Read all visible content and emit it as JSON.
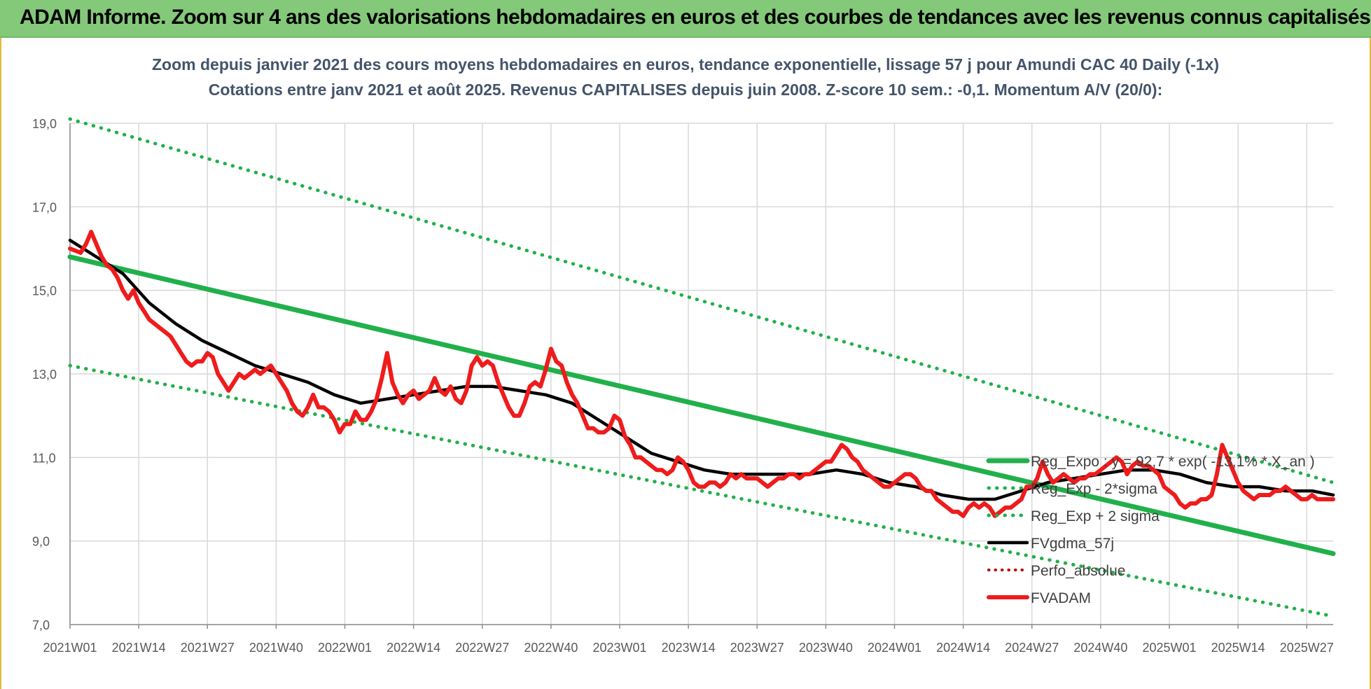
{
  "banner": {
    "title": "ADAM Informe. Zoom sur 4 ans des valorisations hebdomadaires en euros et des courbes de tendances avec les revenus connus capitalisés"
  },
  "colors": {
    "banner_bg": "#84c97a",
    "regression": "#21b04b",
    "sigma": "#21b04b",
    "smoothed": "#000000",
    "perfo": "#c00000",
    "price": "#ee1c1c",
    "grid": "#d9d9d9"
  },
  "chart_data": {
    "type": "line",
    "title": "Zoom depuis janvier 2021 des cours moyens hebdomadaires en euros, tendance exponentielle, lissage 57 j pour Amundi CAC 40 Daily (-1x)",
    "subtitle": "Cotations entre janv 2021 et août 2025. Revenus CAPITALISES depuis juin 2008. Z-score 10 sem.: -0,1. Momentum A/V (20/0):",
    "xlabel": "",
    "ylabel": "",
    "ylim": [
      7.0,
      19.0
    ],
    "y_ticks": [
      "19,0",
      "17,0",
      "15,0",
      "13,0",
      "11,0",
      "9,0",
      "7,0"
    ],
    "y_tick_values": [
      19,
      17,
      15,
      13,
      11,
      9,
      7
    ],
    "x_ticks": [
      "2021W01",
      "2021W14",
      "2021W27",
      "2021W40",
      "2022W01",
      "2022W14",
      "2022W27",
      "2022W40",
      "2023W01",
      "2023W14",
      "2023W27",
      "2023W40",
      "2024W01",
      "2024W14",
      "2024W27",
      "2024W40",
      "2025W01",
      "2025W14",
      "2025W27"
    ],
    "x_tick_index": [
      0,
      13,
      26,
      39,
      52,
      65,
      78,
      91,
      104,
      117,
      130,
      143,
      156,
      169,
      182,
      195,
      208,
      221,
      234
    ],
    "n_weeks": 240,
    "grid": true,
    "legend_position": "right",
    "series": [
      {
        "name": "Reg_Expo : y = 92,7 * exp( -13,1% * X_an )",
        "style": "solid",
        "line": [
          [
            0,
            15.8
          ],
          [
            239,
            8.7
          ]
        ]
      },
      {
        "name": "Reg_Exp - 2*sigma",
        "style": "dotted",
        "line": [
          [
            0,
            13.2
          ],
          [
            239,
            7.2
          ]
        ]
      },
      {
        "name": "Reg_Exp + 2 sigma",
        "style": "dotted",
        "line": [
          [
            0,
            19.1
          ],
          [
            239,
            10.4
          ]
        ]
      },
      {
        "name": "FVgdma_57j",
        "style": "solid",
        "points": [
          [
            0,
            16.2
          ],
          [
            5,
            15.8
          ],
          [
            10,
            15.4
          ],
          [
            15,
            14.7
          ],
          [
            20,
            14.2
          ],
          [
            25,
            13.8
          ],
          [
            30,
            13.5
          ],
          [
            35,
            13.2
          ],
          [
            40,
            13.0
          ],
          [
            45,
            12.8
          ],
          [
            50,
            12.5
          ],
          [
            55,
            12.3
          ],
          [
            60,
            12.4
          ],
          [
            65,
            12.5
          ],
          [
            70,
            12.6
          ],
          [
            75,
            12.7
          ],
          [
            80,
            12.7
          ],
          [
            85,
            12.6
          ],
          [
            90,
            12.5
          ],
          [
            95,
            12.3
          ],
          [
            100,
            11.9
          ],
          [
            105,
            11.5
          ],
          [
            110,
            11.1
          ],
          [
            115,
            10.9
          ],
          [
            120,
            10.7
          ],
          [
            125,
            10.6
          ],
          [
            130,
            10.6
          ],
          [
            135,
            10.6
          ],
          [
            140,
            10.6
          ],
          [
            145,
            10.7
          ],
          [
            150,
            10.6
          ],
          [
            155,
            10.4
          ],
          [
            160,
            10.3
          ],
          [
            165,
            10.1
          ],
          [
            170,
            10.0
          ],
          [
            175,
            10.0
          ],
          [
            180,
            10.2
          ],
          [
            185,
            10.4
          ],
          [
            190,
            10.5
          ],
          [
            195,
            10.6
          ],
          [
            200,
            10.7
          ],
          [
            205,
            10.7
          ],
          [
            210,
            10.6
          ],
          [
            215,
            10.4
          ],
          [
            220,
            10.3
          ],
          [
            225,
            10.3
          ],
          [
            230,
            10.2
          ],
          [
            235,
            10.2
          ],
          [
            239,
            10.1
          ]
        ]
      },
      {
        "name": "Perfo_absolue",
        "style": "dotted",
        "points": []
      },
      {
        "name": "FVADAM",
        "style": "solid",
        "points": [
          [
            0,
            16.0
          ],
          [
            2,
            15.9
          ],
          [
            3,
            16.1
          ],
          [
            4,
            16.4
          ],
          [
            5,
            16.1
          ],
          [
            6,
            15.8
          ],
          [
            7,
            15.6
          ],
          [
            8,
            15.5
          ],
          [
            9,
            15.3
          ],
          [
            10,
            15.0
          ],
          [
            11,
            14.8
          ],
          [
            12,
            15.0
          ],
          [
            13,
            14.7
          ],
          [
            14,
            14.5
          ],
          [
            15,
            14.3
          ],
          [
            16,
            14.2
          ],
          [
            17,
            14.1
          ],
          [
            18,
            14.0
          ],
          [
            19,
            13.9
          ],
          [
            20,
            13.7
          ],
          [
            21,
            13.5
          ],
          [
            22,
            13.3
          ],
          [
            23,
            13.2
          ],
          [
            24,
            13.3
          ],
          [
            25,
            13.3
          ],
          [
            26,
            13.5
          ],
          [
            27,
            13.4
          ],
          [
            28,
            13.0
          ],
          [
            29,
            12.8
          ],
          [
            30,
            12.6
          ],
          [
            31,
            12.8
          ],
          [
            32,
            13.0
          ],
          [
            33,
            12.9
          ],
          [
            34,
            13.0
          ],
          [
            35,
            13.1
          ],
          [
            36,
            13.0
          ],
          [
            37,
            13.1
          ],
          [
            38,
            13.2
          ],
          [
            39,
            13.0
          ],
          [
            40,
            12.8
          ],
          [
            41,
            12.6
          ],
          [
            42,
            12.3
          ],
          [
            43,
            12.1
          ],
          [
            44,
            12.0
          ],
          [
            45,
            12.2
          ],
          [
            46,
            12.5
          ],
          [
            47,
            12.2
          ],
          [
            48,
            12.2
          ],
          [
            49,
            12.1
          ],
          [
            50,
            11.9
          ],
          [
            51,
            11.6
          ],
          [
            52,
            11.8
          ],
          [
            53,
            11.8
          ],
          [
            54,
            12.1
          ],
          [
            55,
            11.9
          ],
          [
            56,
            11.9
          ],
          [
            57,
            12.1
          ],
          [
            58,
            12.4
          ],
          [
            59,
            12.9
          ],
          [
            60,
            13.5
          ],
          [
            61,
            12.8
          ],
          [
            62,
            12.5
          ],
          [
            63,
            12.3
          ],
          [
            64,
            12.5
          ],
          [
            65,
            12.6
          ],
          [
            66,
            12.4
          ],
          [
            67,
            12.5
          ],
          [
            68,
            12.6
          ],
          [
            69,
            12.9
          ],
          [
            70,
            12.6
          ],
          [
            71,
            12.5
          ],
          [
            72,
            12.7
          ],
          [
            73,
            12.4
          ],
          [
            74,
            12.3
          ],
          [
            75,
            12.6
          ],
          [
            76,
            13.2
          ],
          [
            77,
            13.4
          ],
          [
            78,
            13.2
          ],
          [
            79,
            13.3
          ],
          [
            80,
            13.2
          ],
          [
            81,
            12.8
          ],
          [
            82,
            12.5
          ],
          [
            83,
            12.2
          ],
          [
            84,
            12.0
          ],
          [
            85,
            12.0
          ],
          [
            86,
            12.3
          ],
          [
            87,
            12.7
          ],
          [
            88,
            12.8
          ],
          [
            89,
            12.7
          ],
          [
            90,
            13.1
          ],
          [
            91,
            13.6
          ],
          [
            92,
            13.3
          ],
          [
            93,
            13.2
          ],
          [
            94,
            12.8
          ],
          [
            95,
            12.5
          ],
          [
            96,
            12.3
          ],
          [
            97,
            12.0
          ],
          [
            98,
            11.7
          ],
          [
            99,
            11.7
          ],
          [
            100,
            11.6
          ],
          [
            101,
            11.6
          ],
          [
            102,
            11.7
          ],
          [
            103,
            12.0
          ],
          [
            104,
            11.9
          ],
          [
            105,
            11.5
          ],
          [
            106,
            11.3
          ],
          [
            107,
            11.0
          ],
          [
            108,
            11.0
          ],
          [
            109,
            10.9
          ],
          [
            110,
            10.8
          ],
          [
            111,
            10.7
          ],
          [
            112,
            10.7
          ],
          [
            113,
            10.6
          ],
          [
            114,
            10.7
          ],
          [
            115,
            11.0
          ],
          [
            116,
            10.9
          ],
          [
            117,
            10.7
          ],
          [
            118,
            10.4
          ],
          [
            119,
            10.3
          ],
          [
            120,
            10.3
          ],
          [
            121,
            10.4
          ],
          [
            122,
            10.4
          ],
          [
            123,
            10.3
          ],
          [
            124,
            10.4
          ],
          [
            125,
            10.6
          ],
          [
            126,
            10.5
          ],
          [
            127,
            10.6
          ],
          [
            128,
            10.5
          ],
          [
            129,
            10.5
          ],
          [
            130,
            10.5
          ],
          [
            131,
            10.4
          ],
          [
            132,
            10.3
          ],
          [
            133,
            10.4
          ],
          [
            134,
            10.5
          ],
          [
            135,
            10.5
          ],
          [
            136,
            10.6
          ],
          [
            137,
            10.6
          ],
          [
            138,
            10.5
          ],
          [
            139,
            10.6
          ],
          [
            140,
            10.6
          ],
          [
            141,
            10.7
          ],
          [
            142,
            10.8
          ],
          [
            143,
            10.9
          ],
          [
            144,
            10.9
          ],
          [
            145,
            11.1
          ],
          [
            146,
            11.3
          ],
          [
            147,
            11.2
          ],
          [
            148,
            11.0
          ],
          [
            149,
            10.9
          ],
          [
            150,
            10.7
          ],
          [
            151,
            10.6
          ],
          [
            152,
            10.5
          ],
          [
            153,
            10.4
          ],
          [
            154,
            10.3
          ],
          [
            155,
            10.3
          ],
          [
            156,
            10.4
          ],
          [
            157,
            10.5
          ],
          [
            158,
            10.6
          ],
          [
            159,
            10.6
          ],
          [
            160,
            10.5
          ],
          [
            161,
            10.3
          ],
          [
            162,
            10.2
          ],
          [
            163,
            10.2
          ],
          [
            164,
            10.0
          ],
          [
            165,
            9.9
          ],
          [
            166,
            9.8
          ],
          [
            167,
            9.7
          ],
          [
            168,
            9.7
          ],
          [
            169,
            9.6
          ],
          [
            170,
            9.8
          ],
          [
            171,
            9.9
          ],
          [
            172,
            9.8
          ],
          [
            173,
            9.9
          ],
          [
            174,
            9.8
          ],
          [
            175,
            9.6
          ],
          [
            176,
            9.7
          ],
          [
            177,
            9.8
          ],
          [
            178,
            9.8
          ],
          [
            179,
            9.9
          ],
          [
            180,
            10.0
          ],
          [
            181,
            10.3
          ],
          [
            182,
            10.3
          ],
          [
            183,
            10.5
          ],
          [
            184,
            10.9
          ],
          [
            185,
            10.6
          ],
          [
            186,
            10.4
          ],
          [
            187,
            10.5
          ],
          [
            188,
            10.6
          ],
          [
            189,
            10.5
          ],
          [
            190,
            10.4
          ],
          [
            191,
            10.5
          ],
          [
            192,
            10.5
          ],
          [
            193,
            10.6
          ],
          [
            194,
            10.6
          ],
          [
            195,
            10.7
          ],
          [
            196,
            10.8
          ],
          [
            197,
            10.9
          ],
          [
            198,
            11.0
          ],
          [
            199,
            10.9
          ],
          [
            200,
            10.6
          ],
          [
            201,
            10.8
          ],
          [
            202,
            10.9
          ],
          [
            203,
            10.8
          ],
          [
            204,
            10.8
          ],
          [
            205,
            10.7
          ],
          [
            206,
            10.6
          ],
          [
            207,
            10.3
          ],
          [
            208,
            10.2
          ],
          [
            209,
            10.1
          ],
          [
            210,
            9.9
          ],
          [
            211,
            9.8
          ],
          [
            212,
            9.9
          ],
          [
            213,
            9.9
          ],
          [
            214,
            10.0
          ],
          [
            215,
            10.0
          ],
          [
            216,
            10.1
          ],
          [
            217,
            10.6
          ],
          [
            218,
            11.3
          ],
          [
            219,
            11.0
          ],
          [
            220,
            10.7
          ],
          [
            221,
            10.4
          ],
          [
            222,
            10.2
          ],
          [
            223,
            10.1
          ],
          [
            224,
            10.0
          ],
          [
            225,
            10.1
          ],
          [
            226,
            10.1
          ],
          [
            227,
            10.1
          ],
          [
            228,
            10.2
          ],
          [
            229,
            10.2
          ],
          [
            230,
            10.3
          ],
          [
            231,
            10.2
          ],
          [
            232,
            10.1
          ],
          [
            233,
            10.0
          ],
          [
            234,
            10.0
          ],
          [
            235,
            10.1
          ],
          [
            236,
            10.0
          ],
          [
            237,
            10.0
          ],
          [
            239,
            10.0
          ]
        ]
      }
    ]
  }
}
